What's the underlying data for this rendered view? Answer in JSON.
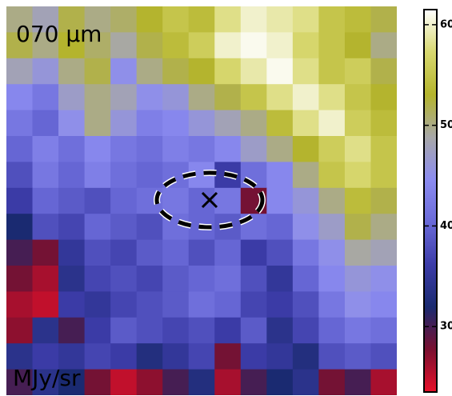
{
  "chart_data": {
    "type": "heatmap",
    "annotations": [
      "070 μm",
      "MJy/sr"
    ],
    "values": [
      [
        50,
        48,
        52,
        50,
        51,
        53,
        55,
        54,
        58,
        60,
        59,
        58,
        55,
        54,
        52
      ],
      [
        52,
        50,
        53,
        51,
        49,
        52,
        54,
        56,
        60,
        61,
        60,
        57,
        55,
        53,
        50
      ],
      [
        48,
        46,
        50,
        52,
        45,
        50,
        52,
        53,
        57,
        59,
        61,
        58,
        55,
        56,
        52
      ],
      [
        44,
        42,
        47,
        50,
        48,
        45,
        46,
        50,
        52,
        55,
        58,
        60,
        58,
        55,
        53
      ],
      [
        42,
        40,
        45,
        50,
        46,
        43,
        44,
        46,
        48,
        50,
        54,
        58,
        60,
        56,
        54
      ],
      [
        40,
        43,
        41,
        44,
        42,
        41,
        43,
        42,
        44,
        47,
        50,
        53,
        56,
        58,
        55
      ],
      [
        38,
        42,
        40,
        43,
        41,
        40,
        41,
        44,
        36,
        41,
        44,
        50,
        55,
        57,
        55
      ],
      [
        36,
        40,
        39,
        38,
        40,
        41,
        42,
        40,
        42,
        28,
        44,
        46,
        50,
        54,
        52
      ],
      [
        32,
        38,
        37,
        40,
        39,
        38,
        41,
        40,
        39,
        41,
        40,
        45,
        47,
        52,
        50
      ],
      [
        30,
        28,
        35,
        38,
        37,
        39,
        40,
        38,
        40,
        36,
        38,
        42,
        45,
        49,
        48
      ],
      [
        28,
        26,
        34,
        37,
        38,
        37,
        39,
        40,
        41,
        38,
        35,
        40,
        44,
        46,
        45
      ],
      [
        26,
        25,
        36,
        35,
        37,
        38,
        39,
        41,
        40,
        37,
        36,
        38,
        42,
        45,
        44
      ],
      [
        27,
        34,
        30,
        36,
        39,
        38,
        37,
        38,
        36,
        39,
        34,
        37,
        40,
        42,
        41
      ],
      [
        34,
        36,
        35,
        37,
        36,
        33,
        35,
        37,
        28,
        36,
        35,
        33,
        38,
        39,
        38
      ],
      [
        30,
        34,
        32,
        28,
        25,
        27,
        30,
        33,
        26,
        30,
        32,
        34,
        28,
        30,
        26
      ]
    ],
    "clim": [
      23.5,
      61.5
    ],
    "cticks": [
      30,
      40,
      50,
      60
    ],
    "colormap": [
      "#e8102a",
      "#7a1030",
      "#1a2a70",
      "#3c3ca8",
      "#6a6ad8",
      "#8c8cf0",
      "#a8a8a8",
      "#b4b42c",
      "#d8d870",
      "#ffffff"
    ]
  }
}
